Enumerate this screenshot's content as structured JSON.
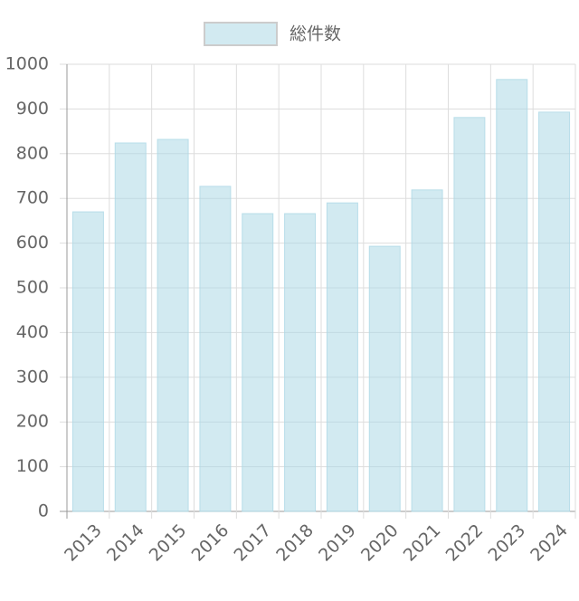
{
  "chart_data": {
    "type": "bar",
    "categories": [
      "2013",
      "2014",
      "2015",
      "2016",
      "2017",
      "2018",
      "2019",
      "2020",
      "2021",
      "2022",
      "2023",
      "2024"
    ],
    "series": [
      {
        "name": "総件数",
        "color": "rgba(173,216,230,0.55)",
        "values": [
          670,
          824,
          832,
          727,
          666,
          666,
          690,
          593,
          719,
          881,
          966,
          893
        ]
      }
    ],
    "ylim": [
      0,
      1000
    ],
    "yticks": [
      0,
      100,
      200,
      300,
      400,
      500,
      600,
      700,
      800,
      900,
      1000
    ],
    "grid": true,
    "legend": "top"
  }
}
